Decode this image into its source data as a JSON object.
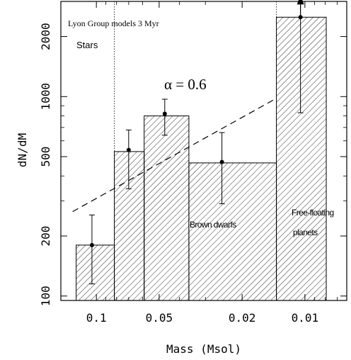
{
  "chart_data": {
    "type": "bar",
    "title": "",
    "xlabel": "Mass (Msol)",
    "ylabel": "dN/dM",
    "x_reversed": true,
    "x_log": true,
    "y_log": true,
    "ylim": [
      95,
      3000
    ],
    "xlim": [
      0.148,
      0.0063
    ],
    "xticks": [
      0.1,
      0.05,
      0.02,
      0.01
    ],
    "xtick_labels": [
      "0.1",
      "0.05",
      "0.02",
      "0.01"
    ],
    "yticks": [
      100,
      200,
      500,
      1000,
      2000
    ],
    "ytick_labels": [
      "100",
      "200",
      "500",
      "1000",
      "2000"
    ],
    "bins": [
      {
        "x_hi": 0.125,
        "x_lo": 0.082,
        "value": 180
      },
      {
        "x_hi": 0.082,
        "x_lo": 0.059,
        "value": 530
      },
      {
        "x_hi": 0.059,
        "x_lo": 0.036,
        "value": 800
      },
      {
        "x_hi": 0.036,
        "x_lo": 0.0137,
        "value": 465
      },
      {
        "x_hi": 0.0137,
        "x_lo": 0.0079,
        "value": 2500
      }
    ],
    "points": [
      {
        "x": 0.105,
        "y": 180,
        "err_lo": 115,
        "err_hi": 255,
        "lower_limit": false
      },
      {
        "x": 0.07,
        "y": 540,
        "err_lo": 345,
        "err_hi": 680,
        "lower_limit": false
      },
      {
        "x": 0.047,
        "y": 820,
        "err_lo": 640,
        "err_hi": 970,
        "lower_limit": false
      },
      {
        "x": 0.025,
        "y": 470,
        "err_lo": 290,
        "err_hi": 660,
        "lower_limit": false
      },
      {
        "x": 0.0105,
        "y": 2500,
        "err_lo": 830,
        "err_hi": 2500,
        "lower_limit": true
      }
    ],
    "dividers": [
      0.082,
      0.0137
    ],
    "fit_line": {
      "label": "α = 0.6",
      "x_start": 0.13,
      "y_start": 265,
      "x_end": 0.0137,
      "y_end": 980
    },
    "annotations": [
      {
        "text": "Lyon Group models 3 Myr"
      },
      {
        "text": "Stars"
      },
      {
        "text": "Brown dwarfs"
      },
      {
        "text": "Free-floating"
      },
      {
        "text": "planets"
      }
    ],
    "colors": {
      "hatch": "#000000",
      "axis": "#000000",
      "background": "#ffffff"
    }
  }
}
